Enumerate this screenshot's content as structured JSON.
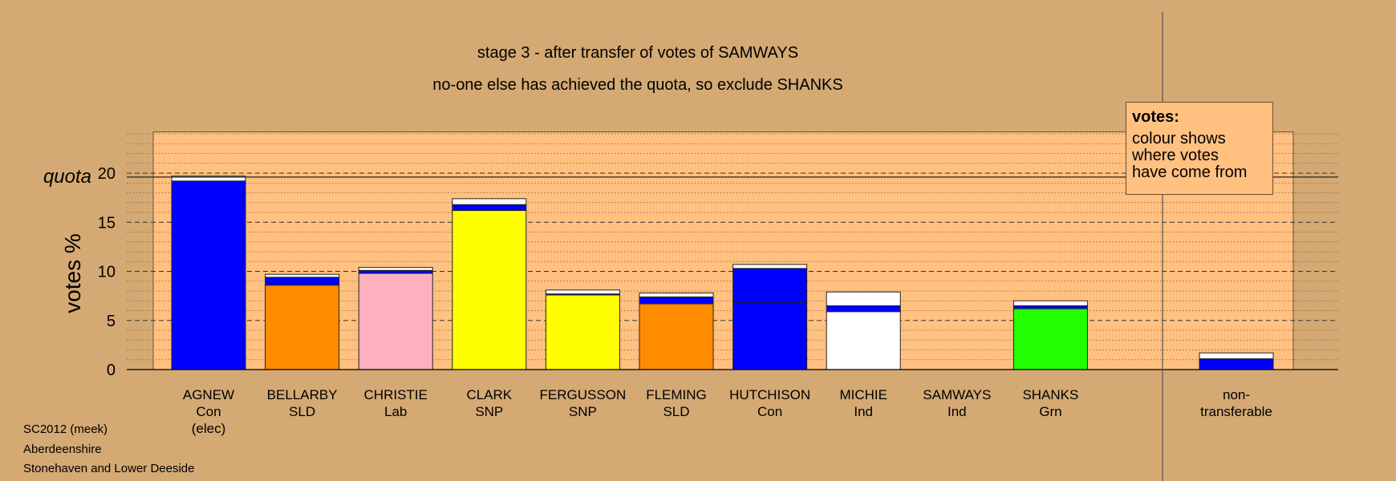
{
  "chart_data": {
    "type": "bar",
    "title": "stage 3 - after transfer of votes of SAMWAYS",
    "subtitle": "no-one else has achieved the quota, so exclude SHANKS",
    "ylabel": "votes %",
    "ylim": [
      0,
      25
    ],
    "yticks": [
      0,
      5,
      10,
      15,
      20
    ],
    "quota": 19.6,
    "quota_label": "quota",
    "candidates": [
      {
        "name": "AGNEW",
        "party": "Con",
        "note": "(elec)",
        "segments": [
          {
            "color": "#0000ff",
            "value": 19.2
          },
          {
            "color": "#ffffff",
            "value": 0.5
          }
        ]
      },
      {
        "name": "BELLARBY",
        "party": "SLD",
        "note": "",
        "segments": [
          {
            "color": "#ff8c00",
            "value": 8.6
          },
          {
            "color": "#0000ff",
            "value": 0.8
          },
          {
            "color": "#ffffff",
            "value": 0.3
          }
        ]
      },
      {
        "name": "CHRISTIE",
        "party": "Lab",
        "note": "",
        "segments": [
          {
            "color": "#ffb0c0",
            "value": 9.8
          },
          {
            "color": "#0000ff",
            "value": 0.3
          },
          {
            "color": "#ffffff",
            "value": 0.3
          }
        ]
      },
      {
        "name": "CLARK",
        "party": "SNP",
        "note": "",
        "segments": [
          {
            "color": "#ffff00",
            "value": 16.2
          },
          {
            "color": "#0000ff",
            "value": 0.6
          },
          {
            "color": "#ffffff",
            "value": 0.6
          }
        ]
      },
      {
        "name": "FERGUSSON",
        "party": "SNP",
        "note": "",
        "segments": [
          {
            "color": "#ffff00",
            "value": 7.6
          },
          {
            "color": "#0000ff",
            "value": 0.1
          },
          {
            "color": "#ffffff",
            "value": 0.4
          }
        ]
      },
      {
        "name": "FLEMING",
        "party": "SLD",
        "note": "",
        "segments": [
          {
            "color": "#ff8c00",
            "value": 6.7
          },
          {
            "color": "#0000ff",
            "value": 0.7
          },
          {
            "color": "#ffffff",
            "value": 0.4
          }
        ]
      },
      {
        "name": "HUTCHISON",
        "party": "Con",
        "note": "",
        "segments": [
          {
            "color": "#0000ff",
            "value": 6.8
          },
          {
            "color": "#0000ff",
            "value": 3.5
          },
          {
            "color": "#ffffff",
            "value": 0.4
          }
        ]
      },
      {
        "name": "MICHIE",
        "party": "Ind",
        "note": "",
        "segments": [
          {
            "color": "#ffffff",
            "value": 5.9
          },
          {
            "color": "#0000ff",
            "value": 0.6
          },
          {
            "color": "#ffffff",
            "value": 1.4
          }
        ]
      },
      {
        "name": "SAMWAYS",
        "party": "Ind",
        "note": "",
        "segments": []
      },
      {
        "name": "SHANKS",
        "party": "Grn",
        "note": "",
        "segments": [
          {
            "color": "#22ff00",
            "value": 6.2
          },
          {
            "color": "#0000ff",
            "value": 0.3
          },
          {
            "color": "#ffffff",
            "value": 0.5
          }
        ]
      }
    ],
    "nontransferable": {
      "label_line1": "non-",
      "label_line2": "transferable",
      "segments": [
        {
          "color": "#0000ff",
          "value": 1.1
        },
        {
          "color": "#ffffff",
          "value": 0.6
        }
      ]
    },
    "legend": {
      "title": "votes:",
      "body": "colour shows\nwhere votes\nhave come from",
      "position": "top-right"
    }
  },
  "footer": {
    "line1": "SC2012 (meek)",
    "line2": "Aberdeenshire",
    "line3": "Stonehaven and Lower Deeside"
  },
  "colors": {
    "background": "#d4a973",
    "plot_area": "#ffc080"
  }
}
